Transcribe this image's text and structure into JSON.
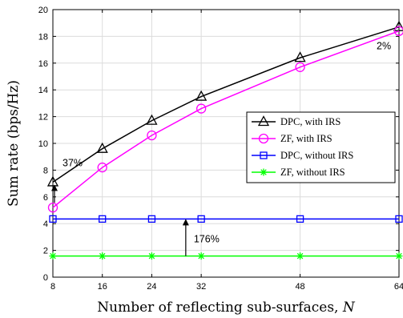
{
  "chart_data": {
    "type": "line",
    "xlabel": "Number of reflecting sub-surfaces, N",
    "ylabel": "Sum rate (bps/Hz)",
    "x": [
      8,
      16,
      24,
      32,
      48,
      64
    ],
    "xticks": [
      8,
      16,
      24,
      32,
      48,
      64
    ],
    "xlim": [
      8,
      64
    ],
    "ylim": [
      0,
      20
    ],
    "yticks": [
      0,
      2,
      4,
      6,
      8,
      10,
      12,
      14,
      16,
      18,
      20
    ],
    "grid": true,
    "legend_position": "center-right",
    "series": [
      {
        "name": "DPC, with IRS",
        "color": "#000000",
        "marker": "triangle",
        "values": [
          7.1,
          9.6,
          11.7,
          13.5,
          16.4,
          18.7
        ]
      },
      {
        "name": "ZF, with IRS",
        "color": "#ff00ff",
        "marker": "circle",
        "values": [
          5.2,
          8.2,
          10.6,
          12.6,
          15.7,
          18.4
        ]
      },
      {
        "name": "DPC, without IRS",
        "color": "#0000ff",
        "marker": "square",
        "values": [
          4.35,
          4.35,
          4.35,
          4.35,
          4.35,
          4.35
        ]
      },
      {
        "name": "ZF, without IRS",
        "color": "#00ff00",
        "marker": "star",
        "values": [
          1.58,
          1.58,
          1.58,
          1.58,
          1.58,
          1.58
        ]
      }
    ],
    "annotations": [
      {
        "text": "37%",
        "x": 8,
        "y_from": 5.2,
        "y_to": 7.1
      },
      {
        "text": "176%",
        "x": 29.5,
        "y_from": 1.58,
        "y_to": 4.35
      },
      {
        "text": "2%",
        "x": 64,
        "y_from": 18.4,
        "y_to": 18.7
      }
    ]
  }
}
